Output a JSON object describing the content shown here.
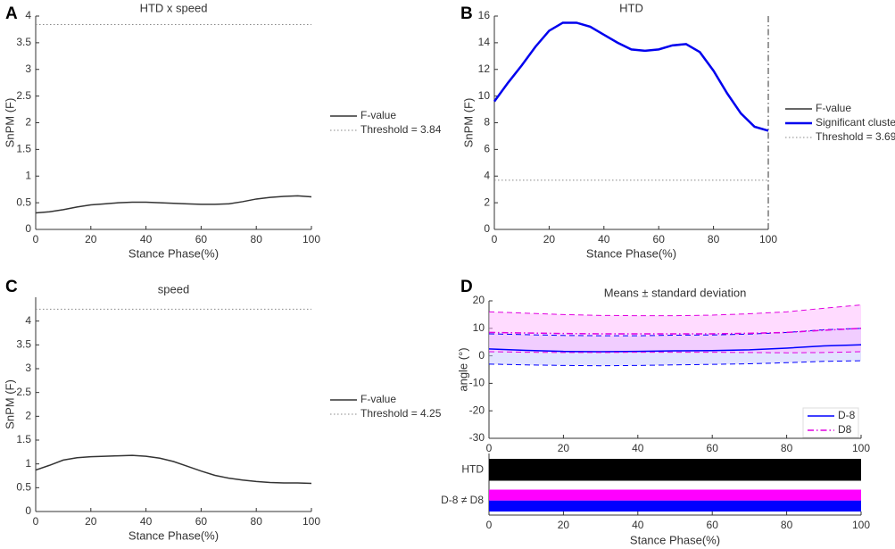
{
  "chart_data": [
    {
      "panel": "A",
      "type": "line",
      "title": "HTD x speed",
      "xlabel": "Stance Phase(%)",
      "ylabel": "SnPM (F)",
      "x": [
        0,
        5,
        10,
        15,
        20,
        25,
        30,
        35,
        40,
        45,
        50,
        55,
        60,
        65,
        70,
        75,
        80,
        85,
        90,
        95,
        100
      ],
      "xlim": [
        0,
        100
      ],
      "xticks": [
        0,
        20,
        40,
        60,
        80,
        100
      ],
      "ylim": [
        0,
        4
      ],
      "yticks": [
        0,
        0.5,
        1,
        1.5,
        2,
        2.5,
        3,
        3.5,
        4
      ],
      "series": [
        {
          "name": "F-value",
          "color": "#333333",
          "values": [
            0.31,
            0.33,
            0.37,
            0.42,
            0.46,
            0.48,
            0.5,
            0.51,
            0.51,
            0.5,
            0.49,
            0.48,
            0.47,
            0.47,
            0.48,
            0.52,
            0.57,
            0.6,
            0.62,
            0.63,
            0.61
          ]
        }
      ],
      "threshold": {
        "name": "Threshold = 3.84",
        "value": 3.84,
        "color": "#888888"
      }
    },
    {
      "panel": "B",
      "type": "line",
      "title": "HTD",
      "xlabel": "Stance Phase(%)",
      "ylabel": "SnPM (F)",
      "x": [
        0,
        5,
        10,
        15,
        20,
        25,
        30,
        35,
        40,
        45,
        50,
        55,
        60,
        65,
        70,
        75,
        80,
        85,
        90,
        95,
        100
      ],
      "xlim": [
        0,
        100
      ],
      "xticks": [
        0,
        20,
        40,
        60,
        80,
        100
      ],
      "ylim": [
        0,
        16
      ],
      "yticks": [
        0,
        2,
        4,
        6,
        8,
        10,
        12,
        14,
        16
      ],
      "series": [
        {
          "name": "F-value",
          "color": "#333333",
          "values": [
            9.6,
            11.0,
            12.3,
            13.7,
            14.9,
            15.5,
            15.5,
            15.2,
            14.6,
            14.0,
            13.5,
            13.4,
            13.5,
            13.8,
            13.9,
            13.3,
            11.9,
            10.2,
            8.7,
            7.7,
            7.4
          ]
        },
        {
          "name": "Significant cluster",
          "color": "#0000ee",
          "width": 2.5,
          "values": [
            9.6,
            11.0,
            12.3,
            13.7,
            14.9,
            15.5,
            15.5,
            15.2,
            14.6,
            14.0,
            13.5,
            13.4,
            13.5,
            13.8,
            13.9,
            13.3,
            11.9,
            10.2,
            8.7,
            7.7,
            7.4
          ]
        }
      ],
      "threshold": {
        "name": "Threshold = 3.69",
        "value": 3.69,
        "color": "#888888"
      },
      "vline": 100
    },
    {
      "panel": "C",
      "type": "line",
      "title": "speed",
      "xlabel": "Stance Phase(%)",
      "ylabel": "SnPM (F)",
      "x": [
        0,
        5,
        10,
        15,
        20,
        25,
        30,
        35,
        40,
        45,
        50,
        55,
        60,
        65,
        70,
        75,
        80,
        85,
        90,
        95,
        100
      ],
      "xlim": [
        0,
        100
      ],
      "xticks": [
        0,
        20,
        40,
        60,
        80,
        100
      ],
      "ylim": [
        0,
        4.5
      ],
      "yticks": [
        0,
        0.5,
        1,
        1.5,
        2,
        2.5,
        3,
        3.5,
        4
      ],
      "series": [
        {
          "name": "F-value",
          "color": "#333333",
          "values": [
            0.87,
            0.97,
            1.08,
            1.13,
            1.15,
            1.16,
            1.17,
            1.18,
            1.16,
            1.12,
            1.05,
            0.95,
            0.85,
            0.76,
            0.7,
            0.66,
            0.63,
            0.61,
            0.6,
            0.6,
            0.59
          ]
        }
      ],
      "threshold": {
        "name": "Threshold = 4.25",
        "value": 4.25,
        "color": "#888888"
      }
    },
    {
      "panel": "D",
      "type": "line",
      "title": "Means ± standard deviation",
      "ylabel": "angle (°)",
      "x": [
        0,
        10,
        20,
        30,
        40,
        50,
        60,
        70,
        80,
        90,
        100
      ],
      "xlim": [
        0,
        100
      ],
      "xticks": [
        0,
        20,
        40,
        60,
        80,
        100
      ],
      "ylim": [
        -30,
        20
      ],
      "yticks": [
        -30,
        -20,
        -10,
        0,
        10,
        20
      ],
      "legend": "lower right",
      "series": [
        {
          "name": "D-8",
          "color": "#0000ff",
          "band": "#c8c8ff",
          "dash": "solid",
          "values": [
            2.5,
            2,
            1.6,
            1.5,
            1.6,
            1.8,
            1.9,
            2.2,
            2.8,
            3.6,
            4.0
          ],
          "upper": [
            8,
            7.7,
            7.4,
            7.3,
            7.3,
            7.5,
            7.6,
            7.9,
            8.5,
            9.5,
            10
          ],
          "lower": [
            -3,
            -3.3,
            -3.5,
            -3.6,
            -3.5,
            -3.3,
            -3.1,
            -2.9,
            -2.5,
            -2,
            -1.8
          ]
        },
        {
          "name": "D8",
          "color": "#e000e0",
          "band": "#ffb8ff",
          "dash": "dashdot",
          "values": [
            8.5,
            8.3,
            8.1,
            8,
            8,
            8,
            8,
            8.2,
            8.5,
            9.3,
            10
          ],
          "upper": [
            16,
            15.5,
            15,
            14.7,
            14.6,
            14.6,
            14.8,
            15.3,
            16,
            17.3,
            18.5
          ],
          "lower": [
            1.5,
            1.3,
            1.2,
            1.2,
            1.3,
            1.3,
            1.3,
            1.2,
            1.1,
            1.2,
            1.5
          ]
        }
      ],
      "strip": {
        "xlabel": "Stance Phase(%)",
        "xlim": [
          0,
          100
        ],
        "xticks": [
          0,
          20,
          40,
          60,
          80,
          100
        ],
        "rows": [
          {
            "name": "HTD",
            "segments": [
              {
                "start": 0,
                "end": 100,
                "color": "#000000"
              }
            ]
          },
          {
            "name": "D-8 ≠ D8",
            "segments": [
              {
                "start": 0,
                "end": 100,
                "color": "#ff00ff"
              },
              {
                "start": 0,
                "end": 100,
                "color": "#0000ff"
              }
            ]
          }
        ]
      }
    }
  ]
}
